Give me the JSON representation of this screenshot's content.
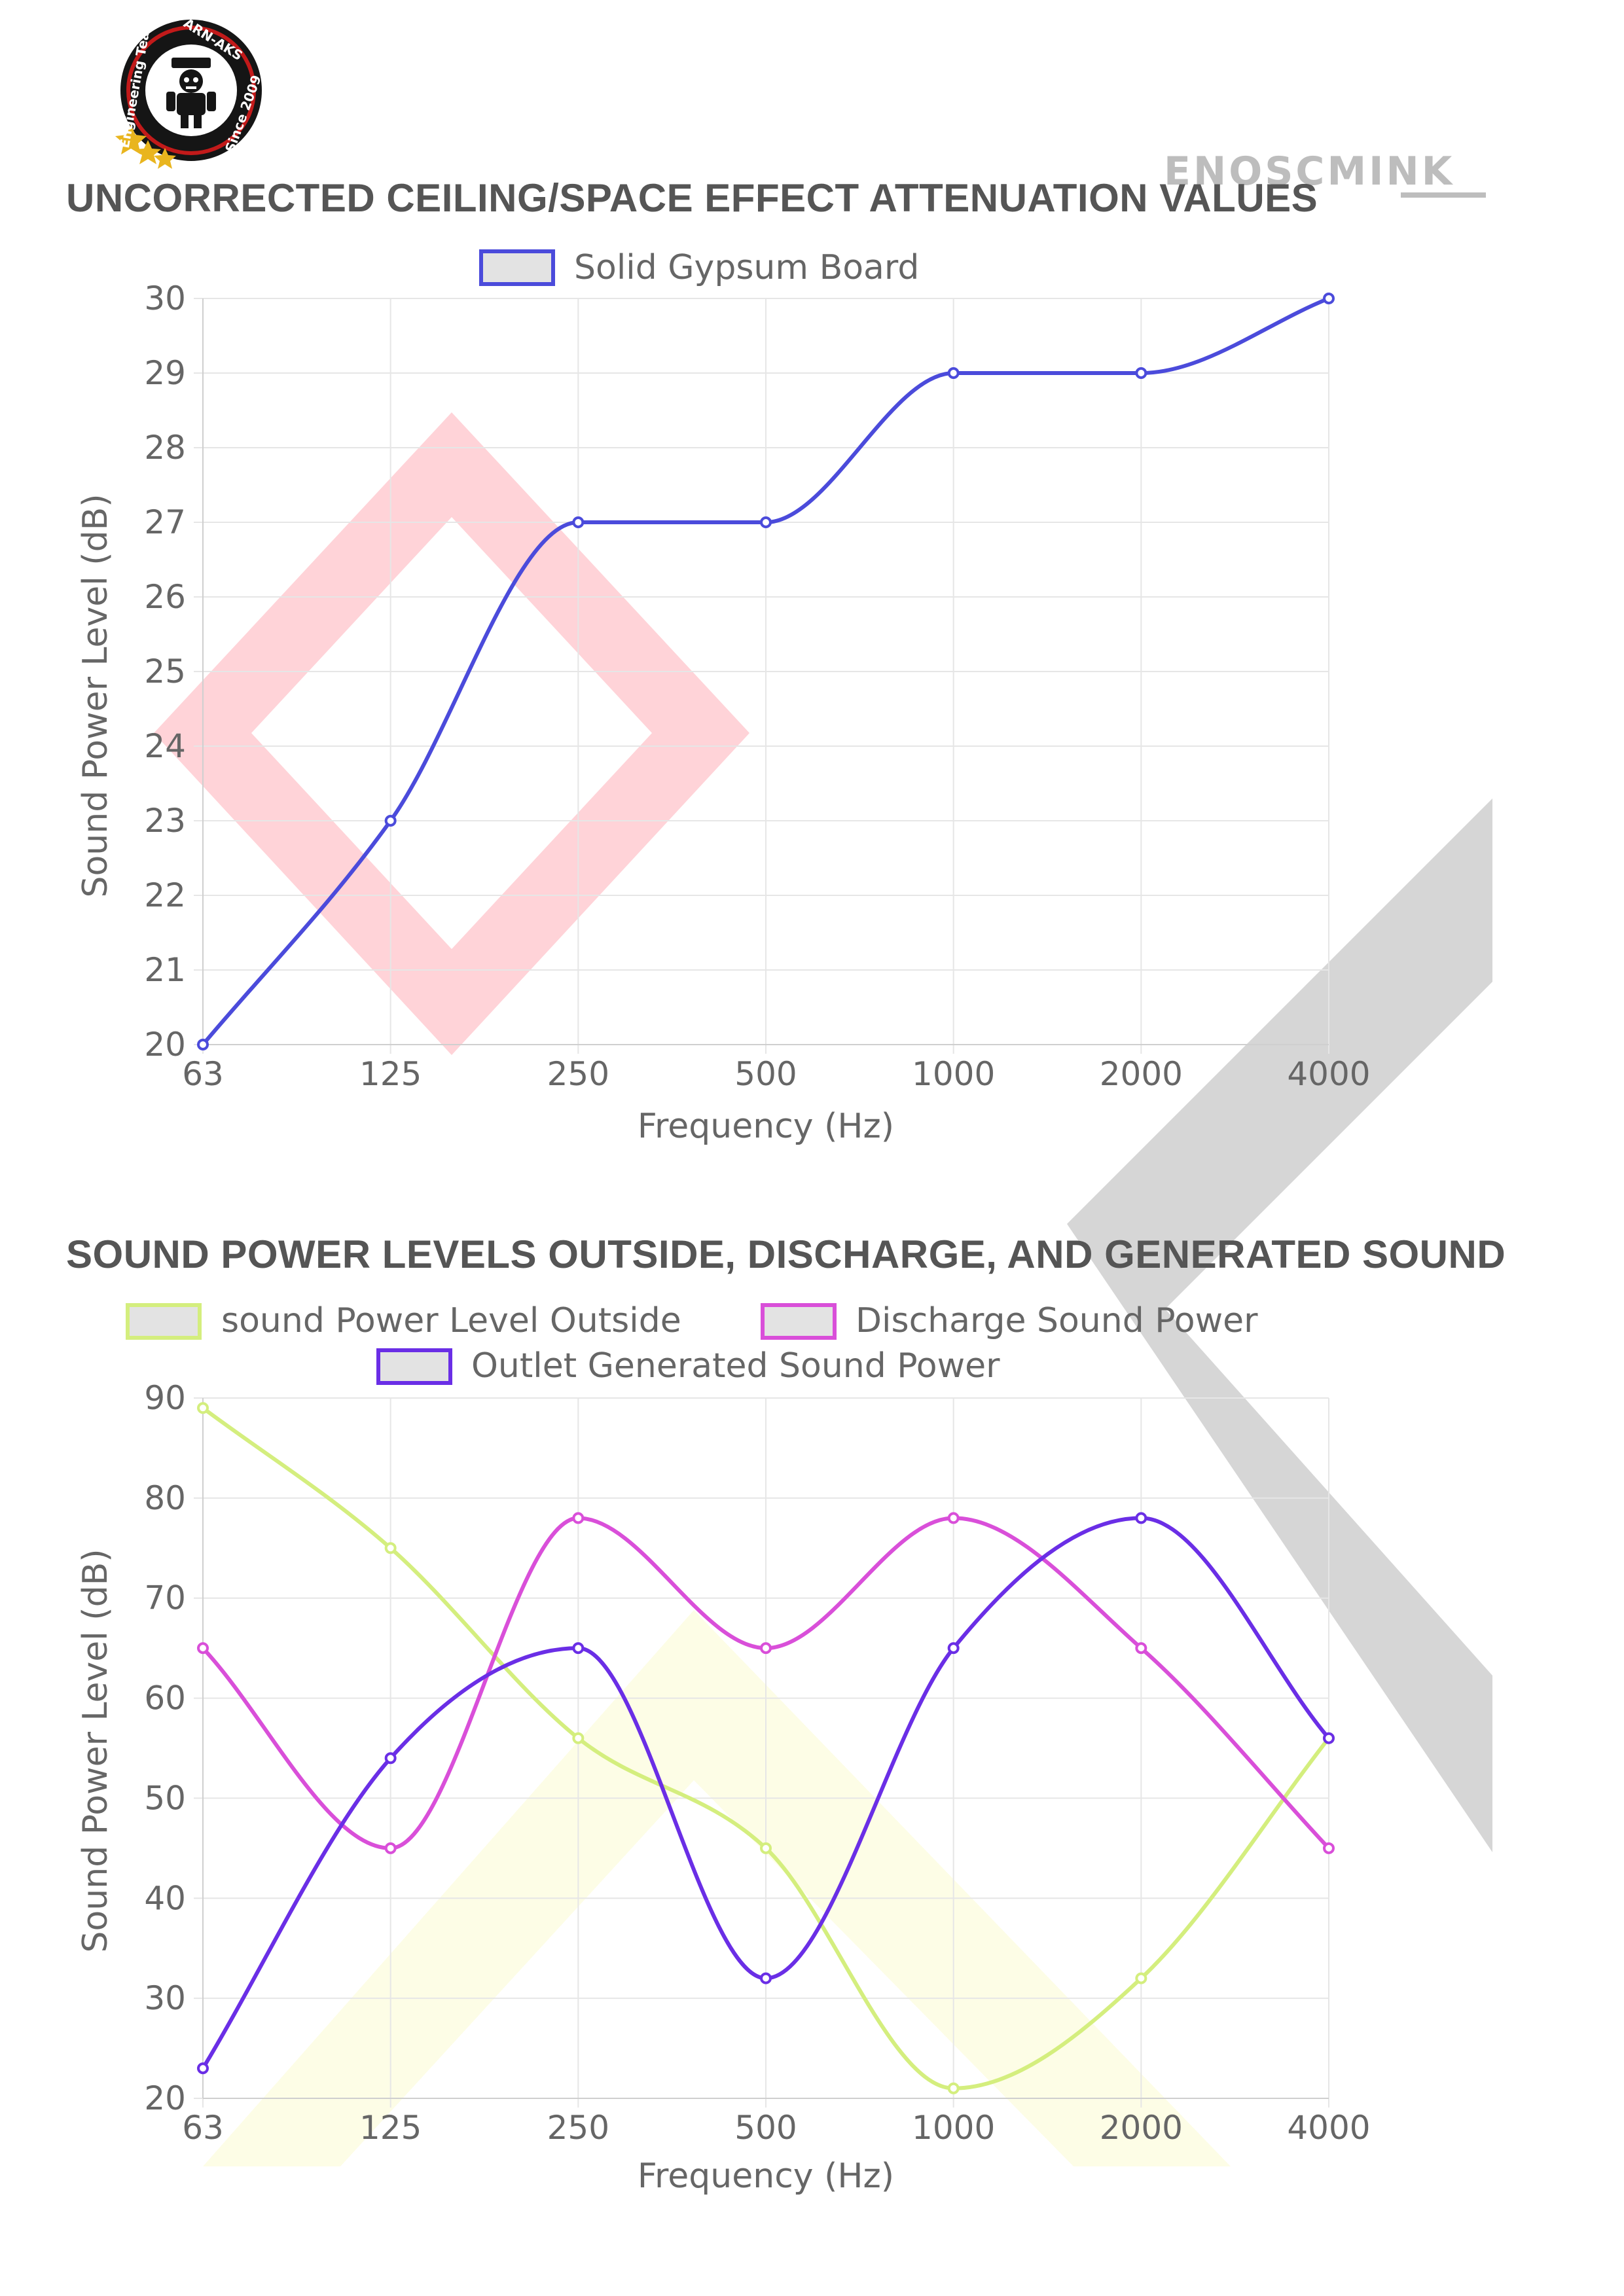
{
  "logo": {
    "ring_text_top": "ARN-AKS",
    "ring_text_bottom": "Since 2009",
    "ring_text_left": "Engineering Team"
  },
  "watermark": {
    "brand": "ENOSCMINK"
  },
  "colors": {
    "solid_gypsum": "#4b4bdb",
    "outside": "#d4ee7e",
    "discharge": "#d94fd9",
    "outlet_generated": "#6a2ee6",
    "red_diamond": "#ffd3d8",
    "gray_chevron": "#d6d6d6",
    "yellow_chevron": "#fdfde6",
    "logo_dark": "#151515",
    "logo_red": "#c21a1a",
    "logo_gold": "#e9b51e"
  },
  "chart_data": [
    {
      "type": "line",
      "title": "UNCORRECTED CEILING/SPACE EFFECT ATTENUATION VALUES",
      "xlabel": "Frequency (Hz)",
      "ylabel": "Sound Power Level (dB)",
      "categories": [
        "63",
        "125",
        "250",
        "500",
        "1000",
        "2000",
        "4000"
      ],
      "ylim": [
        20,
        30
      ],
      "yticks": [
        "30",
        "29",
        "28",
        "27",
        "26",
        "25",
        "24",
        "23",
        "22",
        "21",
        "20"
      ],
      "grid": true,
      "legend_position": "top-center",
      "series": [
        {
          "name": "Solid Gypsum Board",
          "values": [
            20,
            23,
            27,
            27,
            29,
            29,
            30
          ]
        }
      ]
    },
    {
      "type": "line",
      "title": "SOUND POWER LEVELS OUTSIDE, DISCHARGE, AND GENERATED SOUND",
      "xlabel": "Frequency (Hz)",
      "ylabel": "Sound Power Level (dB)",
      "categories": [
        "63",
        "125",
        "250",
        "500",
        "1000",
        "2000",
        "4000"
      ],
      "ylim": [
        20,
        90
      ],
      "yticks": [
        "90",
        "80",
        "70",
        "60",
        "50",
        "40",
        "30",
        "20"
      ],
      "grid": true,
      "legend_position": "top-center",
      "series": [
        {
          "name": "sound Power Level Outside",
          "values": [
            89,
            75,
            56,
            45,
            21,
            32,
            56
          ]
        },
        {
          "name": "Discharge Sound Power",
          "values": [
            65,
            45,
            78,
            65,
            78,
            65,
            45
          ]
        },
        {
          "name": "Outlet Generated Sound Power",
          "values": [
            23,
            54,
            65,
            32,
            65,
            78,
            56
          ]
        }
      ]
    }
  ]
}
